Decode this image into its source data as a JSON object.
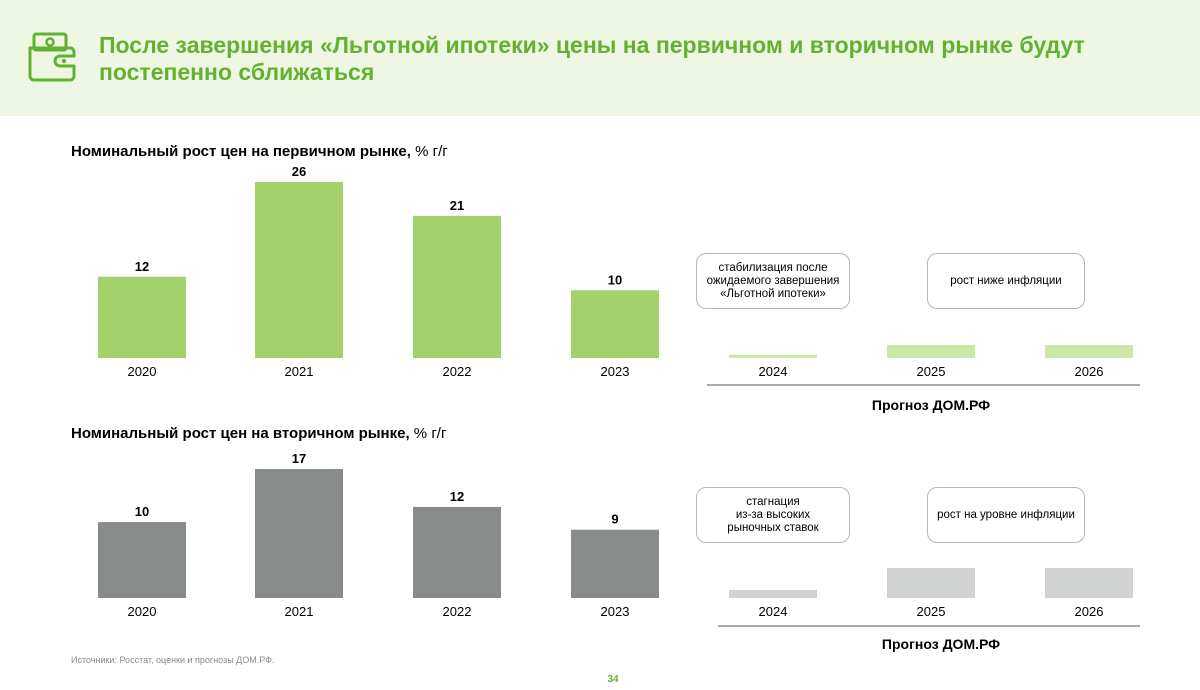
{
  "header": {
    "title": "После завершения «Льготной ипотеки» цены на первичном и вторичном рынке будут постепенно сближаться",
    "icon": "wallet-money-icon",
    "accent_color": "#62b22f",
    "background_color": "#eef6e4"
  },
  "primary": {
    "title": "Номинальный рост цен на первичном рынке,",
    "unit": " % г/г",
    "callouts": [
      "стабилизация после\nожидаемого завершения\n«Льготной ипотеки»",
      "рост ниже инфляции"
    ],
    "forecast_label": "Прогноз ДОМ.РФ"
  },
  "secondary": {
    "title": "Номинальный рост цен на вторичном рынке,",
    "unit": " % г/г",
    "callouts": [
      "стагнация\nиз-за высоких\nрыночных ставок",
      "рост на уровне инфляции"
    ],
    "forecast_label": "Прогноз ДОМ.РФ"
  },
  "chart_data": [
    {
      "type": "bar",
      "title": "Номинальный рост цен на первичном рынке, % г/г",
      "categories": [
        "2020",
        "2021",
        "2022",
        "2023"
      ],
      "values": [
        12,
        26,
        21,
        10
      ],
      "color": "#a3d26b",
      "forecast": {
        "categories": [
          "2024",
          "2025",
          "2026"
        ],
        "relative_levels": [
          0.25,
          1,
          1
        ],
        "color": "#cde7a9",
        "label": "Прогноз ДОМ.РФ"
      }
    },
    {
      "type": "bar",
      "title": "Номинальный рост цен на вторичном рынке, % г/г",
      "categories": [
        "2020",
        "2021",
        "2022",
        "2023"
      ],
      "values": [
        10,
        17,
        12,
        9
      ],
      "color": "#878b89",
      "forecast": {
        "categories": [
          "2024",
          "2025",
          "2026"
        ],
        "relative_levels": [
          0.27,
          1,
          1
        ],
        "color": "#d1d3d3",
        "label": "Прогноз ДОМ.РФ"
      }
    }
  ],
  "footer": {
    "source": "Источники: Росстат, оценки и прогнозы ДОМ.РФ.",
    "page_number": "34"
  }
}
